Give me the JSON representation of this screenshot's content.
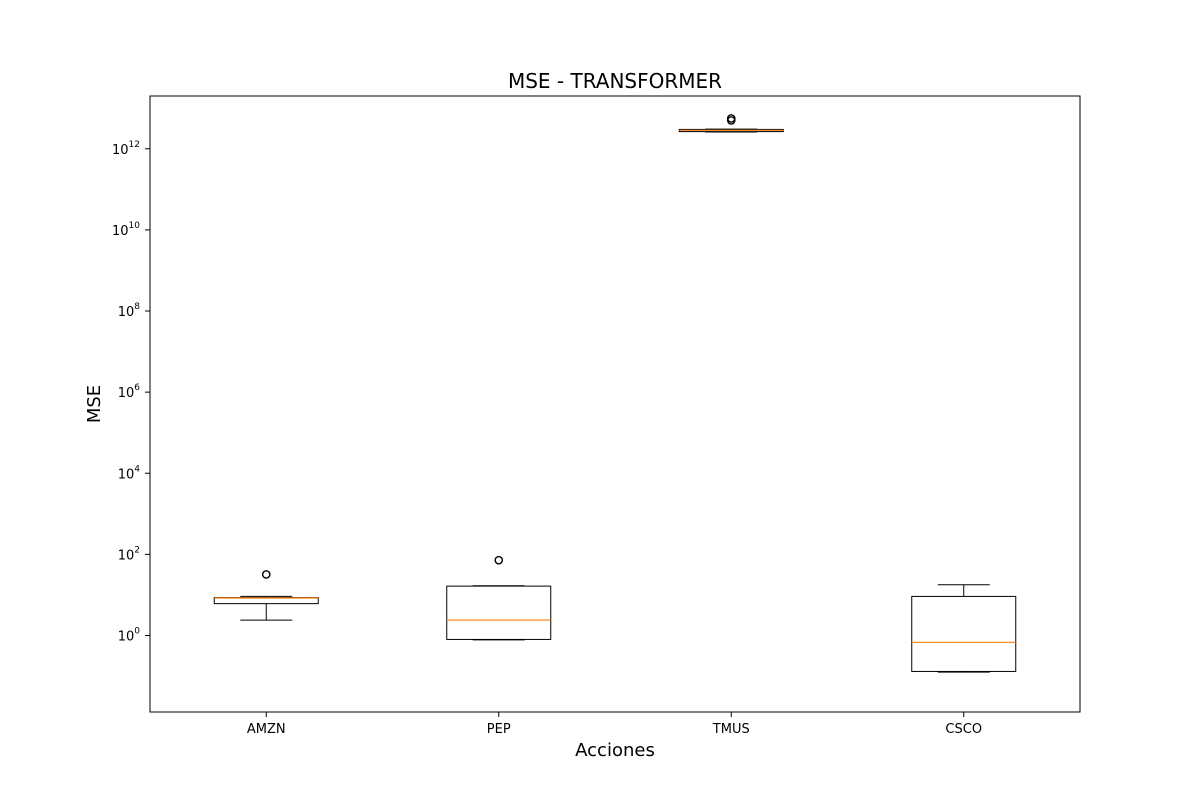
{
  "chart_data": {
    "type": "boxplot",
    "title": "MSE - TRANSFORMER",
    "xlabel": "Acciones",
    "ylabel": "MSE",
    "y_scale": "log",
    "ylim": [
      0.013,
      20000000000000.0
    ],
    "y_tick_base": "10",
    "y_ticks": [
      {
        "value": 1,
        "exponent": "0"
      },
      {
        "value": 100,
        "exponent": "2"
      },
      {
        "value": 10000,
        "exponent": "4"
      },
      {
        "value": 1000000,
        "exponent": "6"
      },
      {
        "value": 100000000,
        "exponent": "8"
      },
      {
        "value": 10000000000,
        "exponent": "10"
      },
      {
        "value": 1000000000000,
        "exponent": "12"
      }
    ],
    "grid": false,
    "box_color": "#000000",
    "median_color": "#ff7f0e",
    "categories": [
      "AMZN",
      "PEP",
      "TMUS",
      "CSCO"
    ],
    "boxes": [
      {
        "name": "AMZN",
        "whisker_low": 2.4,
        "q1": 6.1,
        "median": 8.4,
        "q3": 8.6,
        "whisker_high": 9.2,
        "outliers": [
          32
        ]
      },
      {
        "name": "PEP",
        "whisker_low": 0.78,
        "q1": 0.8,
        "median": 2.4,
        "q3": 16.5,
        "whisker_high": 16.8,
        "outliers": [
          72
        ]
      },
      {
        "name": "TMUS",
        "whisker_low": 2600000000000.0,
        "q1": 2650000000000.0,
        "median": 2850000000000.0,
        "q3": 3000000000000.0,
        "whisker_high": 3050000000000.0,
        "outliers": [
          5000000000000.0,
          5600000000000.0
        ]
      },
      {
        "name": "CSCO",
        "whisker_low": 0.125,
        "q1": 0.13,
        "median": 0.68,
        "q3": 9.2,
        "whisker_high": 17.8,
        "outliers": []
      }
    ]
  }
}
